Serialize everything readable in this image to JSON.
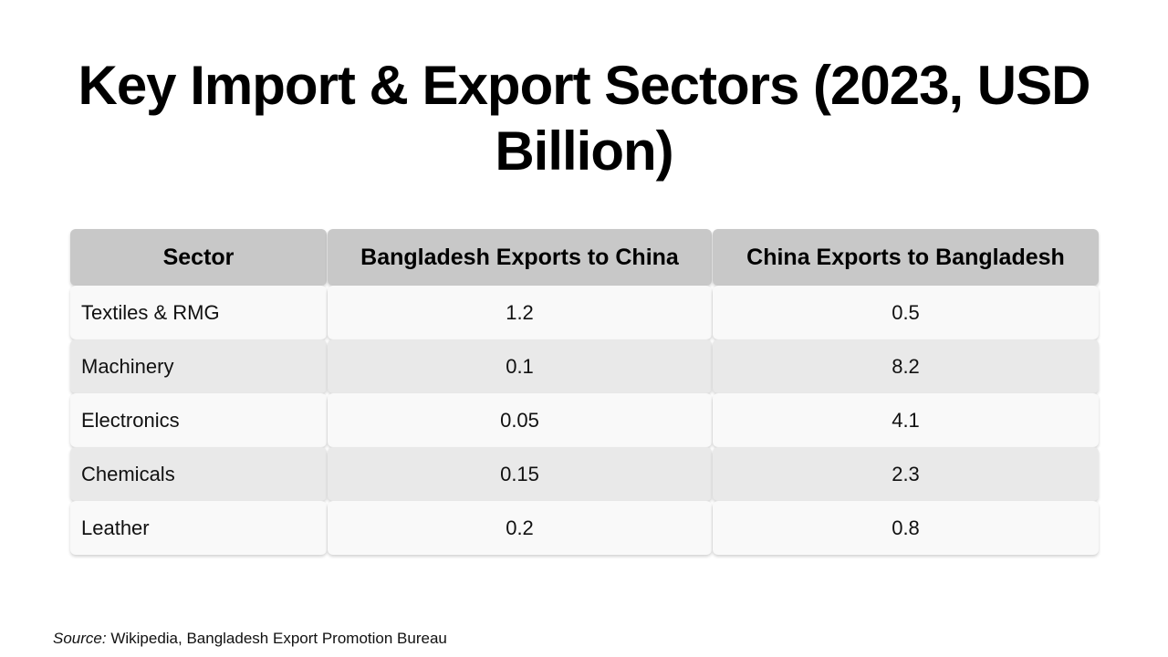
{
  "title": "Key Import & Export Sectors (2023, USD Billion)",
  "table": {
    "headers": [
      "Sector",
      "Bangladesh Exports to China",
      "China Exports to Bangladesh"
    ],
    "rows": [
      [
        "Textiles & RMG",
        "1.2",
        "0.5"
      ],
      [
        "Machinery",
        "0.1",
        "8.2"
      ],
      [
        "Electronics",
        "0.05",
        "4.1"
      ],
      [
        "Chemicals",
        "0.15",
        "2.3"
      ],
      [
        "Leather",
        "0.2",
        "0.8"
      ]
    ]
  },
  "source": {
    "label": "Source:",
    "text": " Wikipedia, Bangladesh Export Promotion Bureau"
  }
}
